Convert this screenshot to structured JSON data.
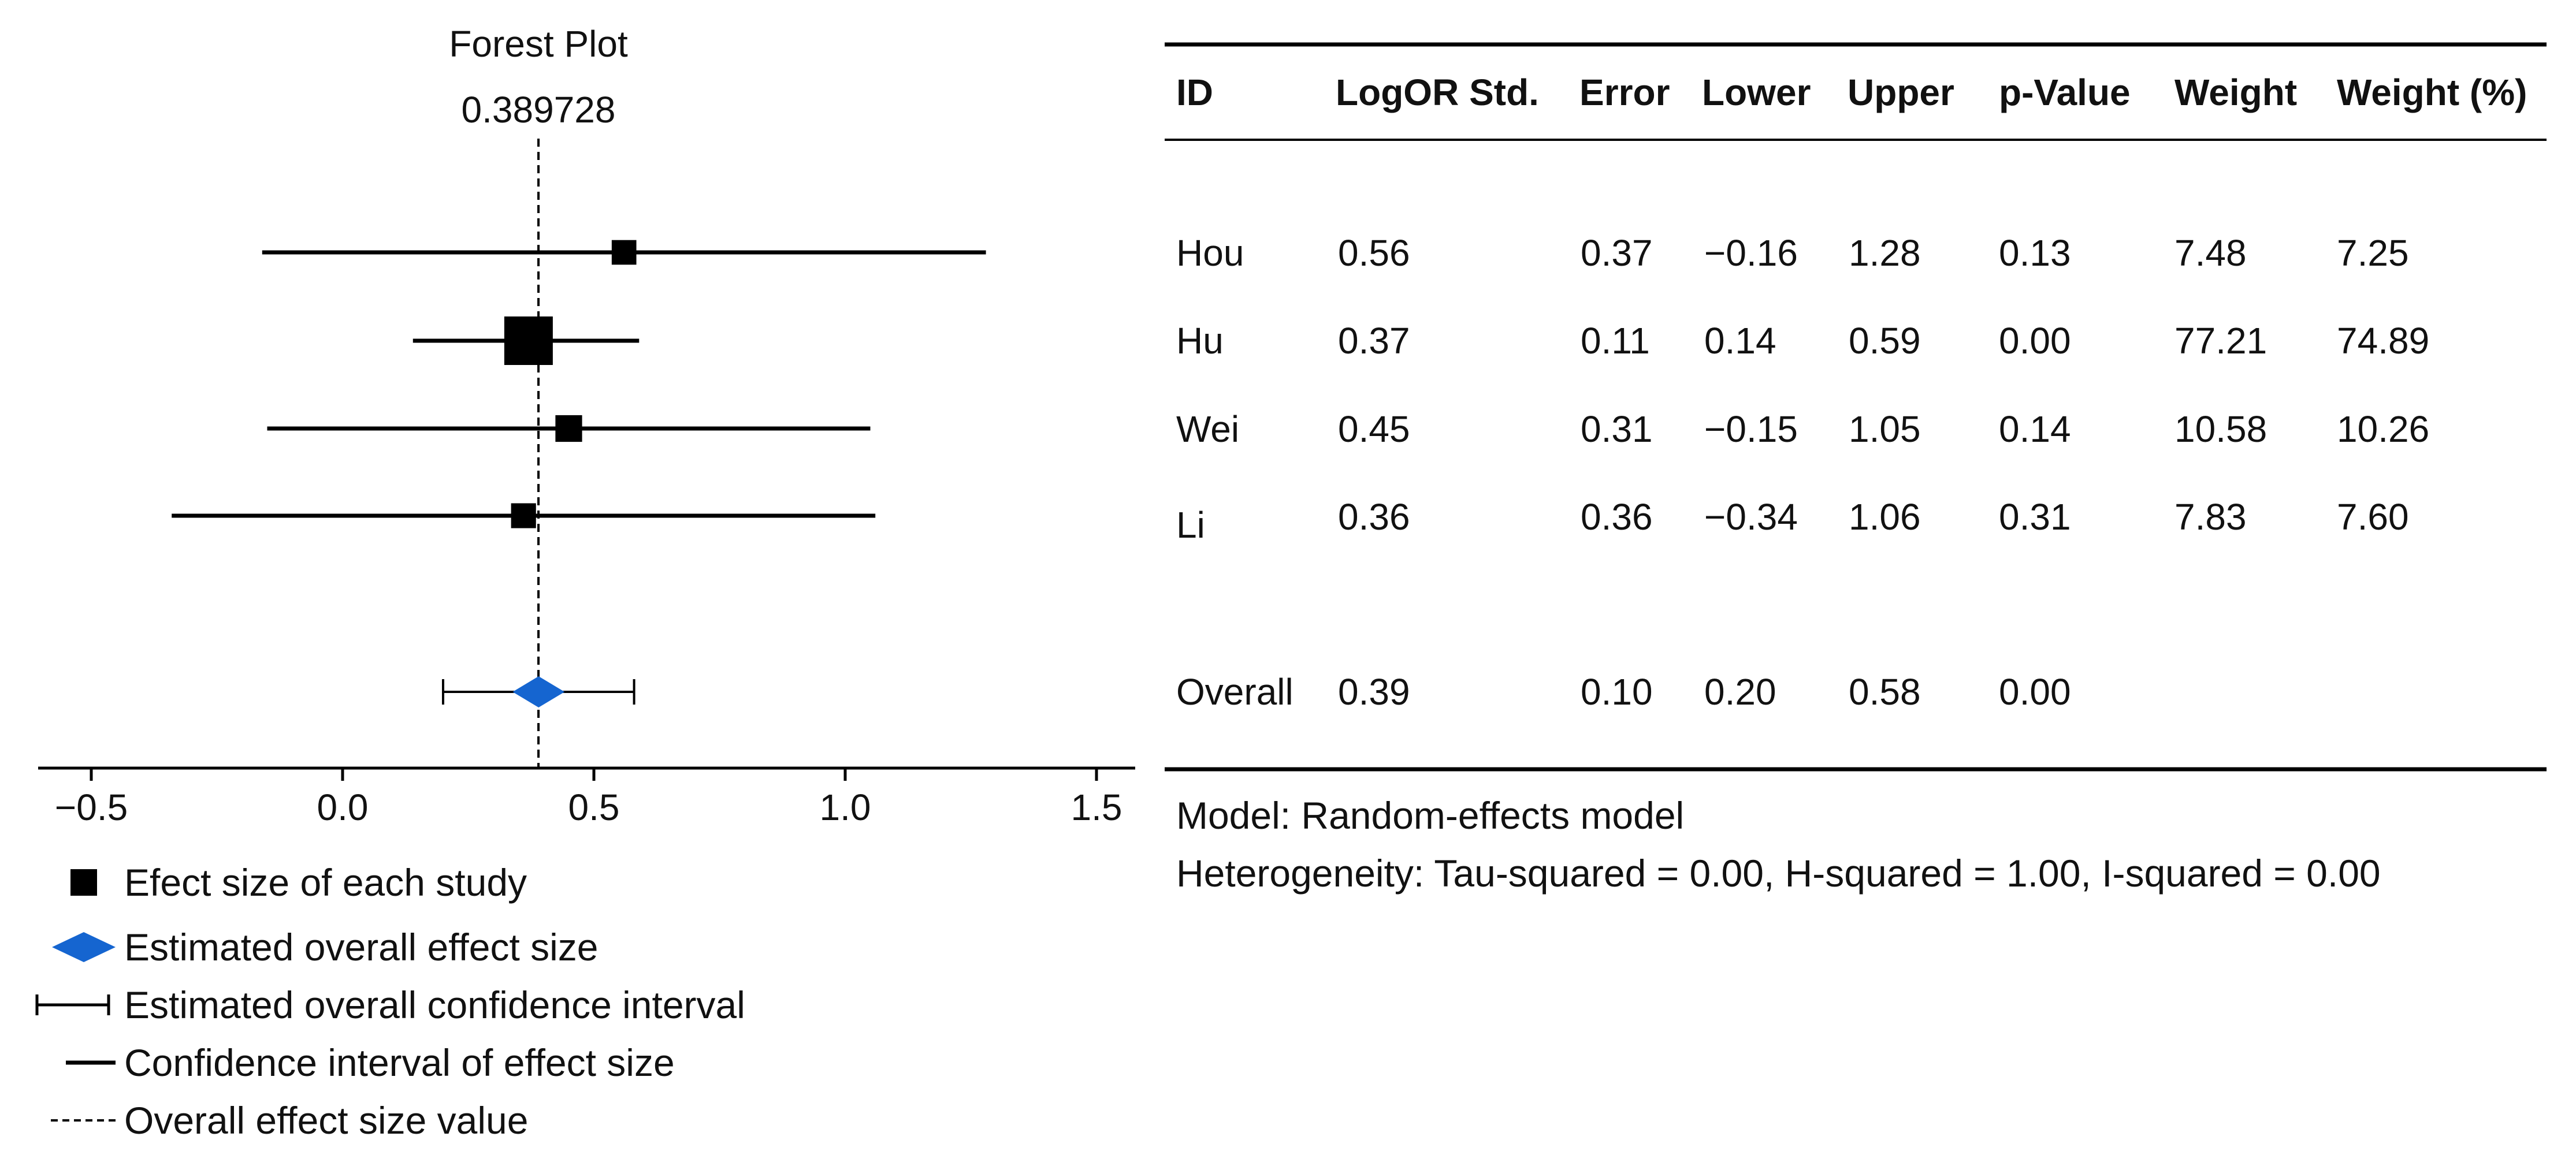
{
  "chart_data": {
    "type": "forest",
    "title": "Forest Plot",
    "overall_label": "0.389728",
    "overall_value": 0.389728,
    "xlim": [
      -0.61,
      1.58
    ],
    "xticks": [
      -0.5,
      0.0,
      0.5,
      1.0,
      1.5
    ],
    "xtick_labels": [
      "−0.5",
      "0.0",
      "0.5",
      "1.0",
      "1.5"
    ],
    "colors": {
      "study": "#000000",
      "overall": "#1565d0",
      "text": "#111111"
    },
    "studies": [
      {
        "id": "Hou",
        "logor": 0.56,
        "lower": -0.16,
        "upper": 1.28,
        "weight_pct": 7.25
      },
      {
        "id": "Hu",
        "logor": 0.37,
        "lower": 0.14,
        "upper": 0.59,
        "weight_pct": 74.89
      },
      {
        "id": "Wei",
        "logor": 0.45,
        "lower": -0.15,
        "upper": 1.05,
        "weight_pct": 10.26
      },
      {
        "id": "Li",
        "logor": 0.36,
        "lower": -0.34,
        "upper": 1.06,
        "weight_pct": 7.6
      }
    ],
    "overall": {
      "logor": 0.39,
      "lower": 0.2,
      "upper": 0.58
    }
  },
  "table": {
    "headers": [
      "ID",
      "LogOR",
      "Std. Error",
      "Lower",
      "Upper",
      "p-Value",
      "Weight",
      "Weight (%)"
    ],
    "header_texts": [
      "ID",
      "LogOR Std.",
      "Error",
      "Lower",
      "Upper",
      "p-Value",
      "Weight",
      "Weight (%)"
    ],
    "rows": [
      [
        "Hou",
        "0.56",
        "0.37",
        "−0.16",
        "1.28",
        "0.13",
        "7.48",
        "7.25"
      ],
      [
        "Hu",
        "0.37",
        "0.11",
        "0.14",
        "0.59",
        "0.00",
        "77.21",
        "74.89"
      ],
      [
        "Wei",
        "0.45",
        "0.31",
        "−0.15",
        "1.05",
        "0.14",
        "10.58",
        "10.26"
      ],
      [
        "Li",
        "0.36",
        "0.36",
        "−0.34",
        "1.06",
        "0.31",
        "7.83",
        "7.60"
      ]
    ],
    "overall_row": [
      "Overall",
      "0.39",
      "0.10",
      "0.20",
      "0.58",
      "0.00",
      "",
      ""
    ]
  },
  "footer": {
    "model": "Model: Random-effects model",
    "heterogeneity": "Heterogeneity: Tau-squared = 0.00, H-squared = 1.00, I-squared = 0.00"
  },
  "legend": {
    "study_marker": "Efect size of each study",
    "overall_marker": "Estimated overall effect size",
    "overall_ci": "Estimated overall confidence interval",
    "study_ci": "Confidence interval of effect size",
    "overall_value": "Overall effect size value"
  }
}
